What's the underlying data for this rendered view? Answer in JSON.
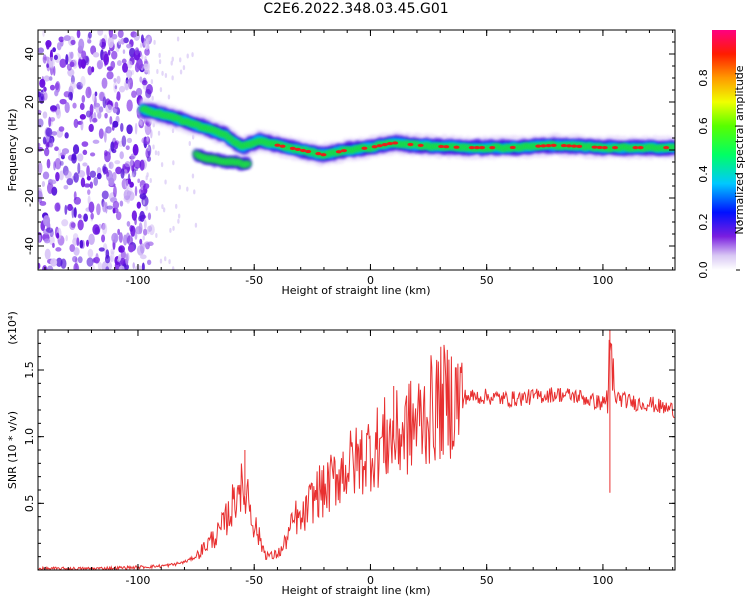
{
  "title": "C2E6.2022.348.03.45.G01",
  "colors": {
    "snr_line": "#e83030",
    "trace_core": "#e8201a",
    "trace_mid": "#1ad84a",
    "trace_outer": "#3a10e0",
    "background": "#ffffff"
  },
  "chart_data": [
    {
      "type": "heatmap",
      "title": "C2E6.2022.348.03.45.G01",
      "xlabel": "Height of straight line (km)",
      "ylabel": "Frequency (Hz)",
      "xlim": [
        -143,
        131
      ],
      "ylim": [
        -50,
        50
      ],
      "x_ticks": [
        -100,
        -50,
        0,
        50,
        100
      ],
      "x_tick_labels": [
        "-100",
        "-50",
        "0",
        "50",
        "100"
      ],
      "y_ticks": [
        -40,
        -20,
        0,
        20,
        40
      ],
      "y_tick_labels": [
        "-40",
        "-20",
        "0",
        "20",
        "40"
      ],
      "colorbar": {
        "label": "Normalized spectral amplitude",
        "range": [
          0,
          1
        ],
        "ticks": [
          0.0,
          0.2,
          0.4,
          0.6,
          0.8
        ],
        "tick_labels": [
          "0.0",
          "0.2",
          "0.4",
          "0.6",
          "0.8"
        ],
        "colormap": "rainbow (white-purple-blue-cyan-green-yellow-red-magenta)"
      },
      "trace": {
        "x": [
          -98,
          -90,
          -80,
          -70,
          -62,
          -55,
          -48,
          -40,
          -30,
          -20,
          -10,
          0,
          10,
          20,
          40,
          60,
          80,
          100,
          120,
          131
        ],
        "y": [
          17,
          15,
          12,
          9,
          6,
          1,
          4,
          2,
          0,
          -2,
          0,
          1,
          3,
          2,
          1,
          1,
          2,
          1,
          1,
          1
        ]
      },
      "branch": {
        "x": [
          -75,
          -68,
          -60,
          -52
        ],
        "y": [
          -2,
          -4,
          -5,
          -6
        ]
      },
      "noise_region_x": [
        -143,
        -100
      ]
    },
    {
      "type": "line",
      "xlabel": "Height of straight line (km)",
      "ylabel": "SNR (10 * v/v)",
      "scale_label": "(x10⁴)",
      "xlim": [
        -143,
        131
      ],
      "ylim": [
        0,
        1.8
      ],
      "x_ticks": [
        -100,
        -50,
        0,
        50,
        100
      ],
      "x_tick_labels": [
        "-100",
        "-50",
        "0",
        "50",
        "100"
      ],
      "y_ticks": [
        0.5,
        1.0,
        1.5
      ],
      "y_tick_labels": [
        "0.5",
        "1.0",
        "1.5"
      ],
      "series": [
        {
          "x": [
            -143,
            -120,
            -100,
            -90,
            -85,
            -80,
            -75,
            -70,
            -65,
            -60,
            -58,
            -56,
            -55,
            -53,
            -51,
            -49,
            -47,
            -45,
            -42,
            -38,
            -35,
            -32,
            -30,
            -28,
            -26,
            -24,
            -22,
            -20,
            -15,
            -10,
            -5,
            0,
            5,
            8,
            10,
            15,
            20,
            25,
            30,
            35,
            40,
            50,
            60,
            70,
            80,
            90,
            95,
            100,
            102,
            103,
            105,
            110,
            115,
            120,
            125,
            131
          ],
          "y": [
            0.01,
            0.01,
            0.02,
            0.03,
            0.04,
            0.06,
            0.1,
            0.2,
            0.28,
            0.45,
            0.55,
            0.7,
            0.5,
            0.62,
            0.4,
            0.3,
            0.2,
            0.12,
            0.1,
            0.15,
            0.28,
            0.4,
            0.35,
            0.42,
            0.5,
            0.55,
            0.6,
            0.58,
            0.7,
            0.78,
            0.82,
            0.9,
            0.95,
            1.0,
            0.98,
            1.05,
            1.1,
            1.18,
            1.25,
            1.28,
            1.3,
            1.3,
            1.28,
            1.3,
            1.32,
            1.3,
            1.27,
            1.25,
            1.3,
            1.55,
            1.3,
            1.27,
            1.25,
            1.25,
            1.22,
            1.2
          ]
        }
      ],
      "annotations": [
        {
          "x": -54,
          "y": 0.9
        },
        {
          "x": 10,
          "y": 1.38
        },
        {
          "x": 103,
          "y": 1.8
        },
        {
          "x": 103,
          "y": 0.58
        }
      ]
    }
  ]
}
